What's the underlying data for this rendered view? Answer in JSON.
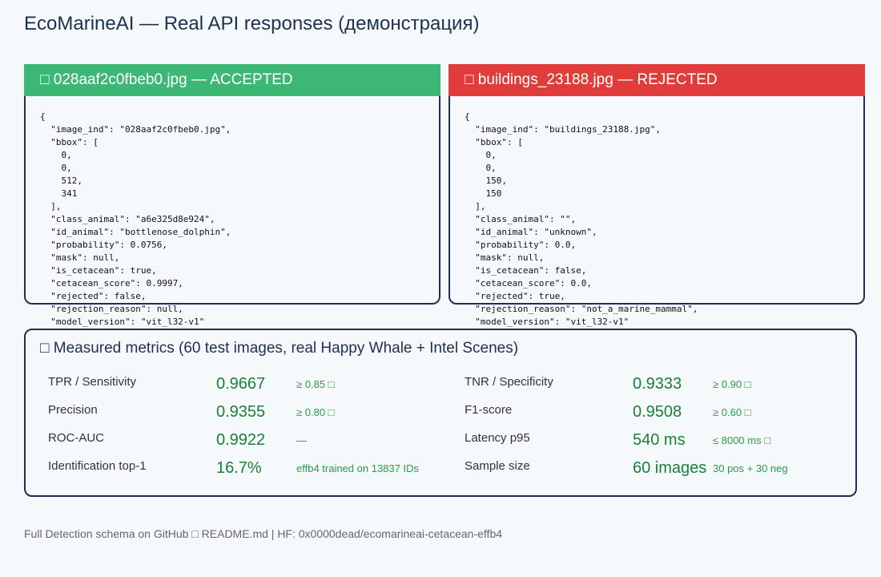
{
  "header": {
    "title": "EcoMarineAI — Real API responses (демонстрация)"
  },
  "cards": [
    {
      "title": "□ 028aaf2c0fbeb0.jpg — ACCEPTED",
      "status": "accepted",
      "code": "{\n  \"image_ind\": \"028aaf2c0fbeb0.jpg\",\n  \"bbox\": [\n    0,\n    0,\n    512,\n    341\n  ],\n  \"class_animal\": \"a6e325d8e924\",\n  \"id_animal\": \"bottlenose_dolphin\",\n  \"probability\": 0.0756,\n  \"mask\": null,\n  \"is_cetacean\": true,\n  \"cetacean_score\": 0.9997,\n  \"rejected\": false,\n  \"rejection_reason\": null,\n  \"model_version\": \"vit_l32-v1\""
    },
    {
      "title": "□ buildings_23188.jpg — REJECTED",
      "status": "rejected",
      "code": "{\n  \"image_ind\": \"buildings_23188.jpg\",\n  \"bbox\": [\n    0,\n    0,\n    150,\n    150\n  ],\n  \"class_animal\": \"\",\n  \"id_animal\": \"unknown\",\n  \"probability\": 0.0,\n  \"mask\": null,\n  \"is_cetacean\": false,\n  \"cetacean_score\": 0.0,\n  \"rejected\": true,\n  \"rejection_reason\": \"not_a_marine_mammal\",\n  \"model_version\": \"vit_l32-v1\""
    }
  ],
  "metrics": {
    "title": "□ Measured metrics (60 test images, real Happy Whale + Intel Scenes)",
    "rows": [
      [
        {
          "label": "TPR / Sensitivity",
          "value": "0.9667",
          "note": "≥ 0.85 □"
        },
        {
          "label": "TNR / Specificity",
          "value": "0.9333",
          "note": "≥ 0.90 □"
        }
      ],
      [
        {
          "label": "Precision",
          "value": "0.9355",
          "note": "≥ 0.80 □"
        },
        {
          "label": "F1-score",
          "value": "0.9508",
          "note": "≥ 0.60 □"
        }
      ],
      [
        {
          "label": "ROC-AUC",
          "value": "0.9922",
          "note": "—"
        },
        {
          "label": "Latency p95",
          "value": "540 ms",
          "note": "≤ 8000 ms □"
        }
      ],
      [
        {
          "label": "Identification top-1",
          "value": "16.7%",
          "note": "effb4 trained on 13837 IDs"
        },
        {
          "label": "Sample size",
          "value": "60 images",
          "note": "30 pos + 30 neg"
        }
      ]
    ]
  },
  "footer": "Full Detection schema on GitHub □ README.md | HF: 0x0000dead/ecomarineai-cetacean-effb4"
}
